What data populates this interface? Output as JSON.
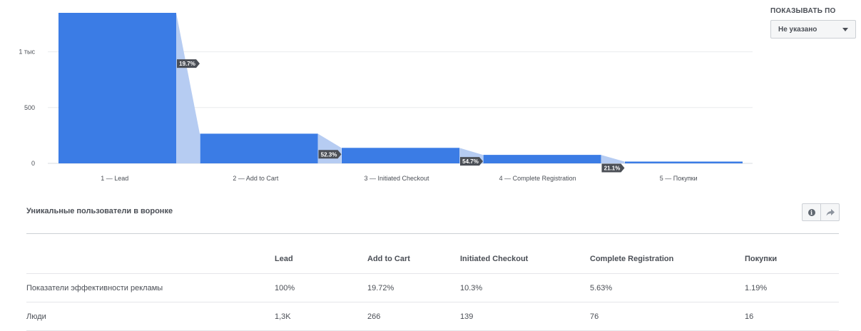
{
  "chart_data": {
    "type": "bar",
    "categories": [
      "1 — Lead",
      "2 — Add to Cart",
      "3 — Initiated Checkout",
      "4 — Complete Registration",
      "5 — Покупки"
    ],
    "values": [
      1349,
      266,
      139,
      76,
      16
    ],
    "conversion_labels": [
      "19.7%",
      "52.3%",
      "54.7%",
      "21.1%"
    ],
    "y_ticks": [
      0,
      500,
      1000
    ],
    "y_tick_labels": [
      "0",
      "500",
      "1 тыс"
    ],
    "ylim": [
      0,
      1349
    ],
    "grid": true,
    "colors": {
      "bar": "#3b7ce5",
      "dropoff": "#b6ccf2",
      "badge": "#4b4f56",
      "grid": "#e9ebee"
    }
  },
  "breakdown": {
    "title": "ПОКАЗЫВАТЬ ПО",
    "selected": "Не указано",
    "icon": "chevron-down-icon"
  },
  "section": {
    "title": "Уникальные пользователи в воронке",
    "actions": [
      {
        "icon": "info-icon",
        "glyph": "i"
      },
      {
        "icon": "share-icon"
      }
    ]
  },
  "table": {
    "columns": [
      "",
      "Lead",
      "Add to Cart",
      "Initiated Checkout",
      "Complete Registration",
      "Покупки"
    ],
    "rows": [
      {
        "label": "Показатели эффективности рекламы",
        "cells": [
          "100%",
          "19.72%",
          "10.3%",
          "5.63%",
          "1.19%"
        ]
      },
      {
        "label": "Люди",
        "cells": [
          "1,3K",
          "266",
          "139",
          "76",
          "16"
        ]
      }
    ]
  }
}
